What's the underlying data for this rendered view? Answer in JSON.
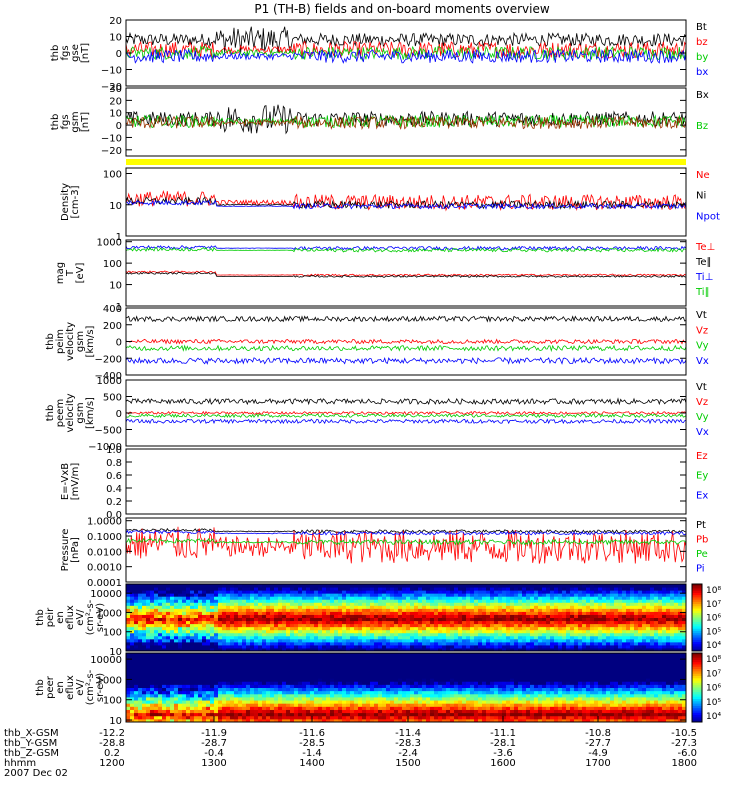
{
  "title": "P1 (TH-B) fields and on-board moments overview",
  "chart_data": {
    "type": "line",
    "x_axis": {
      "label_rows": [
        {
          "name": "thb_X-GSM",
          "values": [
            "-12.2",
            "-11.9",
            "-11.6",
            "-11.4",
            "-11.1",
            "-10.8",
            "-10.5"
          ]
        },
        {
          "name": "thb_Y-GSM",
          "values": [
            "-28.8",
            "-28.7",
            "-28.5",
            "-28.3",
            "-28.1",
            "-27.7",
            "-27.3"
          ]
        },
        {
          "name": "thb_Z-GSM",
          "values": [
            "0.2",
            "-0.4",
            "-1.4",
            "-2.4",
            "-3.6",
            "-4.9",
            "-6.0"
          ]
        },
        {
          "name": "hhmm",
          "values": [
            "1200",
            "1300",
            "1400",
            "1500",
            "1600",
            "1700",
            "1800"
          ]
        }
      ],
      "date": "2007 Dec 02",
      "range_hhmm": [
        "1200",
        "1800"
      ]
    },
    "panels": [
      {
        "id": "fgs",
        "ylabel_lines": [
          "thb",
          "fgs",
          "gse",
          "[nT]"
        ],
        "yscale": "linear",
        "ylim": [
          -20,
          20
        ],
        "ticks": [
          {
            "v": 20,
            "t": "20"
          },
          {
            "v": 10,
            "t": "10"
          },
          {
            "v": 0,
            "t": "0"
          },
          {
            "v": -10,
            "t": "−10"
          },
          {
            "v": -20,
            "t": "−20"
          }
        ],
        "series": [
          {
            "name": "Bt",
            "color": "#000000",
            "base": 8,
            "amp": 4,
            "spread": 1.5,
            "quiet": 2
          },
          {
            "name": "bz",
            "color": "#ff0000",
            "base": 2,
            "amp": 5,
            "spread": 0.5,
            "quiet": 0.5
          },
          {
            "name": "by",
            "color": "#00cc00",
            "base": 0,
            "amp": 4,
            "spread": 0.5,
            "quiet": 0.5
          },
          {
            "name": "bx",
            "color": "#0000ff",
            "base": -2,
            "amp": 4,
            "spread": 0.5,
            "quiet": 0.5
          }
        ]
      },
      {
        "id": "fgs_gsm",
        "ylabel_lines": [
          "thb",
          "fgs",
          "gsm",
          "[nT]"
        ],
        "yscale": "linear",
        "ylim": [
          -25,
          30
        ],
        "ticks": [
          {
            "v": 30,
            "t": "30"
          },
          {
            "v": 20,
            "t": "20"
          },
          {
            "v": 10,
            "t": "10"
          },
          {
            "v": 0,
            "t": "0"
          },
          {
            "v": -10,
            "t": "−10"
          },
          {
            "v": -20,
            "t": "−20"
          }
        ],
        "series": [
          {
            "name": "Bx",
            "color": "#000000",
            "base": 5,
            "amp": 6,
            "spread": 1.5,
            "quiet": 2
          },
          {
            "name": "Bz",
            "color": "#00cc00",
            "base": 3,
            "amp": 5,
            "spread": 0.5,
            "quiet": 0.5
          },
          {
            "name": "",
            "color": "#993300",
            "base": 2,
            "amp": 5,
            "spread": 0.5,
            "quiet": 0.5
          }
        ]
      },
      {
        "id": "density",
        "ylabel_lines": [
          "Density",
          "[cm-3]"
        ],
        "yscale": "log",
        "ylim": [
          1,
          150
        ],
        "ticks": [
          {
            "v": 100,
            "t": "100"
          },
          {
            "v": 10,
            "t": "10"
          },
          {
            "v": 1,
            "t": "1"
          }
        ],
        "series": [
          {
            "name": "Ne",
            "color": "#ff0000",
            "base": 12,
            "amp": 0.25,
            "spread": 1.3,
            "quiet": 0.3
          },
          {
            "name": "Ni",
            "color": "#000000",
            "base": 10,
            "amp": 0.12,
            "spread": 1.3,
            "quiet": 0.15
          },
          {
            "name": "Npot",
            "color": "#0000ff",
            "base": 9,
            "amp": 0.08,
            "spread": 1.3,
            "quiet": 0.1
          }
        ]
      },
      {
        "id": "temp",
        "ylabel_lines": [
          "mag",
          "T",
          "[eV]"
        ],
        "yscale": "log",
        "ylim": [
          1,
          1200
        ],
        "ticks": [
          {
            "v": 1000,
            "t": "1000"
          },
          {
            "v": 100,
            "t": "100"
          },
          {
            "v": 10,
            "t": "10"
          },
          {
            "v": 1,
            "t": "1"
          }
        ],
        "series": [
          {
            "name": "Te⊥",
            "color": "#ff0000",
            "base": 28,
            "amp": 0.04,
            "spread": 1.4,
            "quiet": 0.2
          },
          {
            "name": "Te∥",
            "color": "#000000",
            "base": 24,
            "amp": 0.04,
            "spread": 1.4,
            "quiet": 0.2
          },
          {
            "name": "Ti⊥",
            "color": "#0000ff",
            "base": 500,
            "amp": 0.08,
            "spread": 1.1,
            "quiet": 0.1
          },
          {
            "name": "Ti∥",
            "color": "#00cc00",
            "base": 400,
            "amp": 0.08,
            "spread": 1.1,
            "quiet": 0.1
          }
        ]
      },
      {
        "id": "peim",
        "ylabel_lines": [
          "thb",
          "peim",
          "velocity",
          "gsm",
          "[km/s]"
        ],
        "yscale": "linear",
        "ylim": [
          -400,
          400
        ],
        "ticks": [
          {
            "v": 400,
            "t": "400"
          },
          {
            "v": 200,
            "t": "200"
          },
          {
            "v": 0,
            "t": "0"
          },
          {
            "v": -200,
            "t": "−200"
          },
          {
            "v": -400,
            "t": "−400"
          }
        ],
        "series": [
          {
            "name": "Vt",
            "color": "#000000",
            "base": 270,
            "amp": 30,
            "spread": 1.2,
            "quiet": 1
          },
          {
            "name": "Vz",
            "color": "#ff0000",
            "base": 0,
            "amp": 25,
            "spread": 1,
            "quiet": 1
          },
          {
            "name": "Vy",
            "color": "#00cc00",
            "base": -80,
            "amp": 30,
            "spread": 1,
            "quiet": 1
          },
          {
            "name": "Vx",
            "color": "#0000ff",
            "base": -230,
            "amp": 35,
            "spread": 1.4,
            "quiet": 1
          }
        ]
      },
      {
        "id": "peem",
        "ylabel_lines": [
          "thb",
          "peem",
          "velocity",
          "gsm",
          "[km/s]"
        ],
        "yscale": "linear",
        "ylim": [
          -1000,
          1000
        ],
        "ticks": [
          {
            "v": 1000,
            "t": "1000"
          },
          {
            "v": 500,
            "t": "500"
          },
          {
            "v": 0,
            "t": "0"
          },
          {
            "v": -500,
            "t": "−500"
          },
          {
            "v": -1000,
            "t": "−1000"
          }
        ],
        "series": [
          {
            "name": "Vt",
            "color": "#000000",
            "base": 350,
            "amp": 80,
            "spread": 1,
            "quiet": 1
          },
          {
            "name": "Vz",
            "color": "#ff0000",
            "base": 0,
            "amp": 40,
            "spread": 1,
            "quiet": 1
          },
          {
            "name": "Vy",
            "color": "#00cc00",
            "base": -80,
            "amp": 50,
            "spread": 1,
            "quiet": 1
          },
          {
            "name": "Vx",
            "color": "#0000ff",
            "base": -250,
            "amp": 60,
            "spread": 1,
            "quiet": 1
          }
        ]
      },
      {
        "id": "efield",
        "ylabel_lines": [
          "E=-VxB",
          "[mV/m]"
        ],
        "yscale": "linear",
        "ylim": [
          0,
          1
        ],
        "ticks": [
          {
            "v": 1,
            "t": "1.0"
          },
          {
            "v": 0.8,
            "t": "0.8"
          },
          {
            "v": 0.6,
            "t": "0.6"
          },
          {
            "v": 0.4,
            "t": "0.4"
          },
          {
            "v": 0.2,
            "t": "0.2"
          },
          {
            "v": 0,
            "t": "0.0"
          }
        ],
        "series": [
          {
            "name": "Ez",
            "color": "#ff0000",
            "base": null
          },
          {
            "name": "Ey",
            "color": "#00cc00",
            "base": null
          },
          {
            "name": "Ex",
            "color": "#0000ff",
            "base": null
          }
        ]
      },
      {
        "id": "pressure",
        "ylabel_lines": [
          "Pressure",
          "[nPa]"
        ],
        "yscale": "log",
        "ylim": [
          0.0001,
          1.5
        ],
        "ticks": [
          {
            "v": 1,
            "t": "1.0000"
          },
          {
            "v": 0.1,
            "t": "0.1000"
          },
          {
            "v": 0.01,
            "t": "0.0100"
          },
          {
            "v": 0.001,
            "t": "0.0010"
          },
          {
            "v": 0.0001,
            "t": "0.0001"
          }
        ],
        "series": [
          {
            "name": "Pt",
            "color": "#000000",
            "base": 0.2,
            "amp": 0.1,
            "spread": 1.2,
            "quiet": 0.3
          },
          {
            "name": "Pb",
            "color": "#ff0000",
            "base": 0.02,
            "amp": 1.1,
            "spread": 1.6,
            "quiet": 0.6
          },
          {
            "name": "Pe",
            "color": "#00cc00",
            "base": 0.04,
            "amp": 0.15,
            "spread": 1.2,
            "quiet": 0.3
          },
          {
            "name": "Pi",
            "color": "#0000ff",
            "base": 0.15,
            "amp": 0.1,
            "spread": 1.2,
            "quiet": 0.3
          }
        ]
      }
    ],
    "spectrograms": [
      {
        "id": "peir",
        "ylabel_lines": [
          "thb",
          "peir",
          "en",
          "eflux",
          "eV/",
          "(cm²-s-",
          "sr-eV)"
        ],
        "yscale": "log",
        "ylim": [
          10,
          30000
        ],
        "ticks": [
          {
            "v": 10000,
            "t": "10000"
          },
          {
            "v": 1000,
            "t": "1000"
          },
          {
            "v": 100,
            "t": "100"
          },
          {
            "v": 10,
            "t": "10"
          }
        ],
        "colorbar_ticks": [
          "10⁸",
          "10⁷",
          "10⁶",
          "10⁵",
          "10⁴"
        ],
        "colorbar_range": [
          4,
          8
        ],
        "peak_energy_eV": 500
      },
      {
        "id": "peer",
        "ylabel_lines": [
          "thb",
          "peer",
          "en",
          "eflux",
          "eV/",
          "(cm²-s-",
          "sr-eV)"
        ],
        "yscale": "log",
        "ylim": [
          8,
          20000
        ],
        "ticks": [
          {
            "v": 10000,
            "t": "10000"
          },
          {
            "v": 1000,
            "t": "1000"
          },
          {
            "v": 100,
            "t": "100"
          },
          {
            "v": 10,
            "t": "10"
          }
        ],
        "colorbar_ticks": [
          "10⁸",
          "10⁷",
          "10⁶",
          "10⁵",
          "10⁴"
        ],
        "colorbar_range": [
          4,
          8
        ],
        "peak_energy_eV": 20
      }
    ]
  }
}
